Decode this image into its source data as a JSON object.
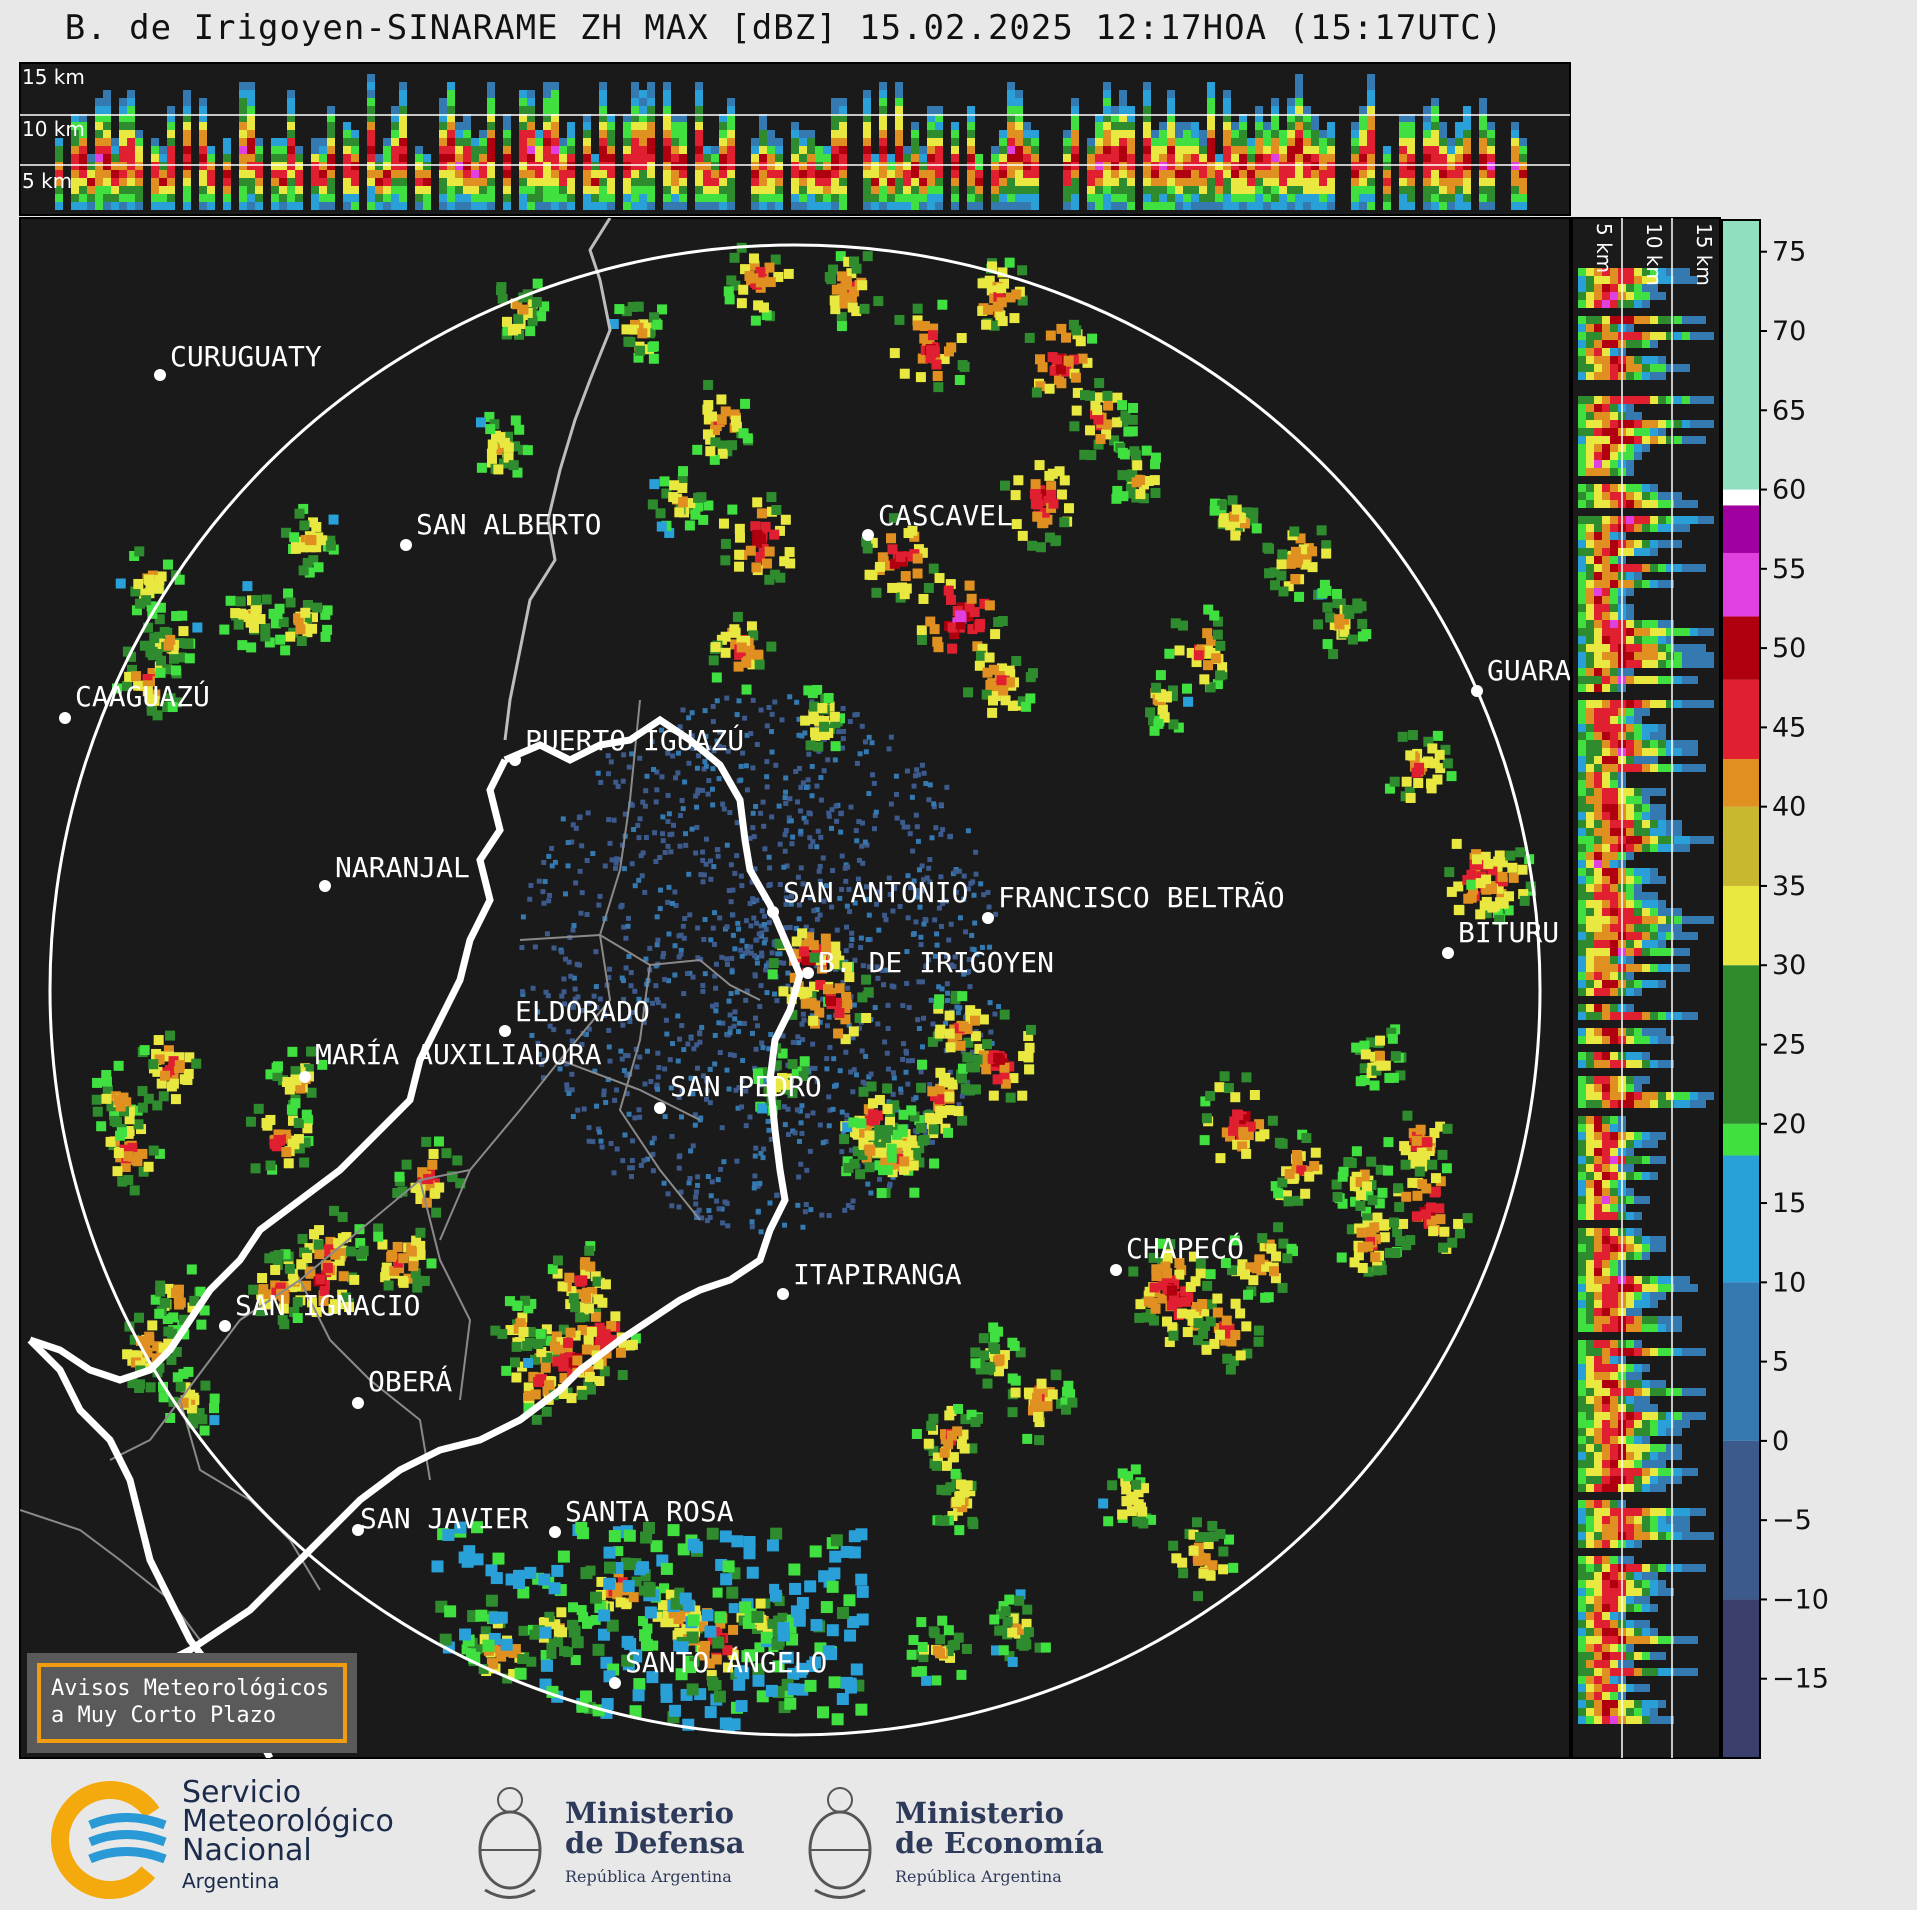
{
  "title": "B. de Irigoyen-SINARAME ZH MAX [dBZ] 15.02.2025 12:17HOA (15:17UTC)",
  "product": "ZH MAX",
  "units": "dBZ",
  "height_labels": {
    "top": [
      "15 km",
      "10 km",
      "5 km"
    ],
    "side": [
      "5 km",
      "10 km",
      "15 km"
    ]
  },
  "colorbar": {
    "ticks": [
      "75",
      "70",
      "65",
      "60",
      "55",
      "50",
      "45",
      "40",
      "35",
      "30",
      "25",
      "20",
      "15",
      "10",
      "5",
      "0",
      "−5",
      "−10",
      "−15"
    ],
    "tick_values": [
      75,
      70,
      65,
      60,
      55,
      50,
      45,
      40,
      35,
      30,
      25,
      20,
      15,
      10,
      5,
      0,
      -5,
      -10,
      -15
    ],
    "range": [
      -20,
      77
    ],
    "colors": [
      {
        "from": -20,
        "to": -10,
        "color": "#3b3f6e"
      },
      {
        "from": -10,
        "to": 0,
        "color": "#3d5a8c"
      },
      {
        "from": 0,
        "to": 10,
        "color": "#3479b0"
      },
      {
        "from": 10,
        "to": 18,
        "color": "#2aa0d8"
      },
      {
        "from": 18,
        "to": 20,
        "color": "#40e040"
      },
      {
        "from": 20,
        "to": 30,
        "color": "#2e8b2e"
      },
      {
        "from": 30,
        "to": 35,
        "color": "#e8e840"
      },
      {
        "from": 35,
        "to": 40,
        "color": "#c8b830"
      },
      {
        "from": 40,
        "to": 43,
        "color": "#e09020"
      },
      {
        "from": 43,
        "to": 48,
        "color": "#e02030"
      },
      {
        "from": 48,
        "to": 52,
        "color": "#b00010"
      },
      {
        "from": 52,
        "to": 56,
        "color": "#e040e0"
      },
      {
        "from": 56,
        "to": 59,
        "color": "#a000a0"
      },
      {
        "from": 59,
        "to": 60,
        "color": "#ffffff"
      },
      {
        "from": 60,
        "to": 77,
        "color": "#90e0c0"
      }
    ]
  },
  "cities": [
    {
      "name": "CURUGUATY"
    },
    {
      "name": "SAN ALBERTO"
    },
    {
      "name": "CASCAVEL"
    },
    {
      "name": "CAAGUAZÚ"
    },
    {
      "name": "GUARA"
    },
    {
      "name": "PUERTO IGUAZÚ"
    },
    {
      "name": "NARANJAL"
    },
    {
      "name": "SAN ANTONIO"
    },
    {
      "name": "FRANCISCO BELTRÃO"
    },
    {
      "name": "BITURU"
    },
    {
      "name": "B. DE IRIGOYEN"
    },
    {
      "name": "ELDORADO"
    },
    {
      "name": "MARÍA AUXILIADORA"
    },
    {
      "name": "SAN PEDRO"
    },
    {
      "name": "CHAPECÓ"
    },
    {
      "name": "ITAPIRANGA"
    },
    {
      "name": "SAN IGNACIO"
    },
    {
      "name": "OBERÁ"
    },
    {
      "name": "SAN JAVIER"
    },
    {
      "name": "SANTA ROSA"
    },
    {
      "name": "SANTO ÁNGELO"
    }
  ],
  "warning": {
    "line1": "Avisos Meteorológicos",
    "line2": "a Muy Corto Plazo"
  },
  "logos": {
    "smn": {
      "line1": "Servicio",
      "line2": "Meteorológico",
      "line3": "Nacional",
      "sub": "Argentina"
    },
    "defensa": {
      "line1": "Ministerio",
      "line2": "de Defensa",
      "sub": "República Argentina"
    },
    "economia": {
      "line1": "Ministerio",
      "line2": "de Economía",
      "sub": "República Argentina"
    }
  },
  "colors": {
    "panel_bg": "#1a1a1a",
    "page_bg": "#e8e8e8",
    "range_ring": "#ffffff",
    "border": "#ffffff"
  }
}
